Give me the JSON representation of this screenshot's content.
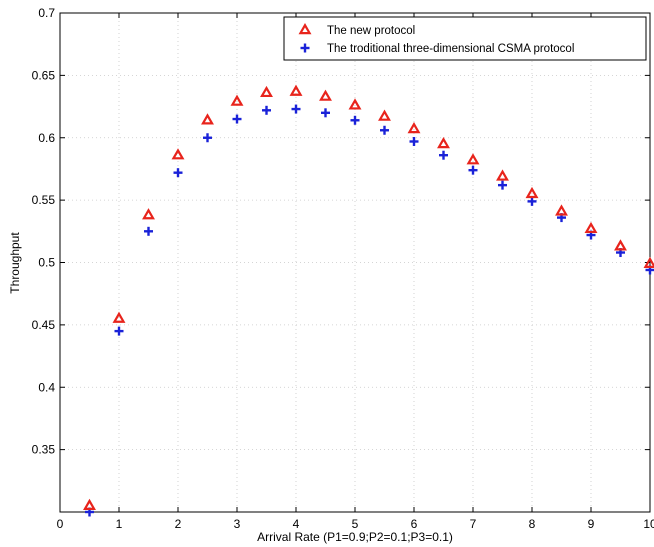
{
  "chart_data": {
    "type": "scatter",
    "xlabel": "Arrival Rate (P1=0.9;P2=0.1;P3=0.1)",
    "ylabel": "Throughput",
    "xlim": [
      0,
      10
    ],
    "ylim": [
      0.3,
      0.7
    ],
    "xticks": [
      "0",
      "1",
      "2",
      "3",
      "4",
      "5",
      "6",
      "7",
      "8",
      "9",
      "10"
    ],
    "yticks": [
      "0.35",
      "0.4",
      "0.45",
      "0.5",
      "0.55",
      "0.6",
      "0.65",
      "0.7"
    ],
    "grid": true,
    "legend_position": "top-right",
    "x": [
      0.5,
      1,
      1.5,
      2,
      2.5,
      3,
      3.5,
      4,
      4.5,
      5,
      5.5,
      6,
      6.5,
      7,
      7.5,
      8,
      8.5,
      9,
      9.5,
      10
    ],
    "series": [
      {
        "name": "The new protocol",
        "marker": "triangle",
        "color": "#e8241c",
        "values": [
          0.305,
          0.455,
          0.538,
          0.586,
          0.614,
          0.629,
          0.636,
          0.637,
          0.633,
          0.626,
          0.617,
          0.607,
          0.595,
          0.582,
          0.569,
          0.555,
          0.541,
          0.527,
          0.513,
          0.499
        ]
      },
      {
        "name": "The troditional three-dimensional CSMA protocol",
        "marker": "plus",
        "color": "#1a22d8",
        "values": [
          0.3,
          0.445,
          0.525,
          0.572,
          0.6,
          0.615,
          0.622,
          0.623,
          0.62,
          0.614,
          0.606,
          0.597,
          0.586,
          0.574,
          0.562,
          0.549,
          0.536,
          0.522,
          0.508,
          0.494
        ]
      }
    ]
  }
}
